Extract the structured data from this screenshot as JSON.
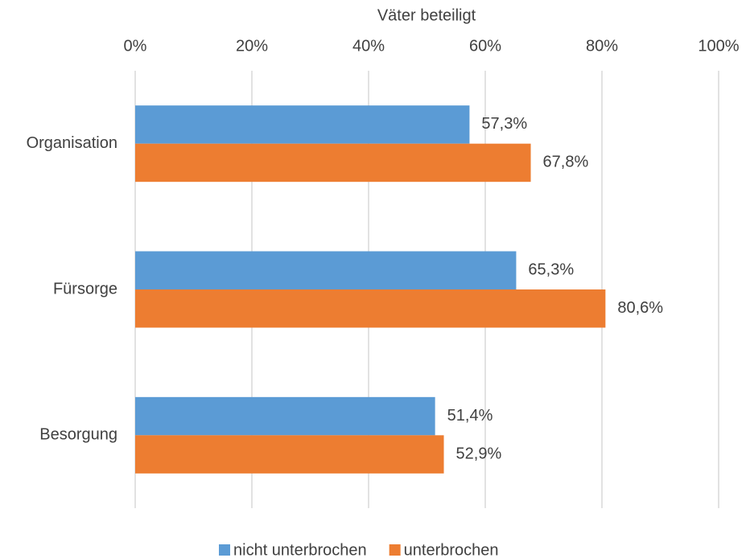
{
  "chart_data": {
    "type": "bar",
    "orientation": "horizontal",
    "xlabel": "Väter beteiligt",
    "categories": [
      "Organisation",
      "Fürsorge",
      "Besorgung"
    ],
    "series": [
      {
        "name": "nicht unterbrochen",
        "color": "#5b9bd5",
        "values": [
          57.3,
          65.3,
          51.4
        ],
        "value_labels": [
          "57,3%",
          "65,3%",
          "51,4%"
        ]
      },
      {
        "name": "unterbrochen",
        "color": "#ed7d31",
        "values": [
          67.8,
          80.6,
          52.9
        ],
        "value_labels": [
          "67,8%",
          "80,6%",
          "52,9%"
        ]
      }
    ],
    "xlim": [
      0,
      100
    ],
    "xticks": [
      {
        "value": 0,
        "label": "0%"
      },
      {
        "value": 20,
        "label": "20%"
      },
      {
        "value": 40,
        "label": "40%"
      },
      {
        "value": 60,
        "label": "60%"
      },
      {
        "value": 80,
        "label": "80%"
      },
      {
        "value": 100,
        "label": "100%"
      }
    ],
    "grid": true,
    "legend": "bottom"
  }
}
